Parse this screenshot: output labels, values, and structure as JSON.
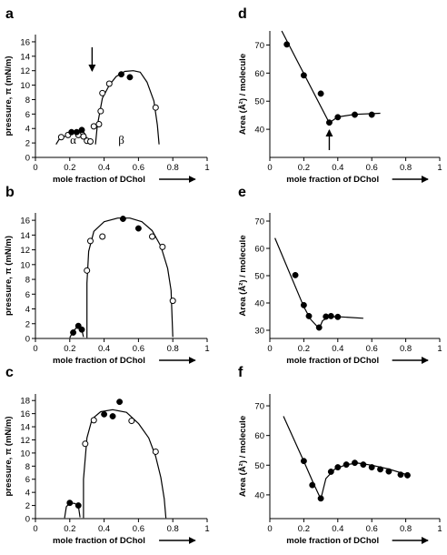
{
  "chart_data": [
    {
      "id": "a",
      "type": "scatter",
      "letter": "a",
      "xlabel": "mole fraction of DChol",
      "ylabel": "pressure, π (mN/m)",
      "xlim": [
        0,
        1
      ],
      "ylim": [
        0,
        17
      ],
      "xticks": [
        0,
        0.2,
        0.4,
        0.6,
        0.8,
        1
      ],
      "xtick_labels": [
        "0",
        "0.2",
        "0.4",
        "0.6",
        "0.8",
        "1"
      ],
      "yticks": [
        0,
        2,
        4,
        6,
        8,
        10,
        12,
        14,
        16
      ],
      "ytick_labels": [
        "0",
        "2",
        "4",
        "6",
        "8",
        "10",
        "12",
        "14",
        "16"
      ],
      "open_points": [
        [
          0.15,
          2.8
        ],
        [
          0.19,
          3.1
        ],
        [
          0.25,
          3.1
        ],
        [
          0.28,
          2.9
        ],
        [
          0.3,
          2.3
        ],
        [
          0.32,
          2.2
        ],
        [
          0.34,
          4.3
        ],
        [
          0.37,
          4.6
        ],
        [
          0.38,
          6.4
        ],
        [
          0.39,
          8.9
        ],
        [
          0.43,
          10.2
        ],
        [
          0.7,
          6.9
        ]
      ],
      "filled_points": [
        [
          0.21,
          3.5
        ],
        [
          0.24,
          3.5
        ],
        [
          0.27,
          3.8
        ],
        [
          0.5,
          11.5
        ],
        [
          0.55,
          11.1
        ]
      ],
      "curves": [
        [
          [
            0.12,
            1.8
          ],
          [
            0.14,
            2.6
          ],
          [
            0.17,
            2.9
          ],
          [
            0.2,
            3.2
          ],
          [
            0.24,
            3.6
          ],
          [
            0.27,
            3.8
          ],
          [
            0.29,
            3.2
          ],
          [
            0.31,
            1.9
          ]
        ],
        [
          [
            0.35,
            1.8
          ],
          [
            0.36,
            4.3
          ],
          [
            0.37,
            5.6
          ],
          [
            0.39,
            8.2
          ],
          [
            0.43,
            10.0
          ],
          [
            0.47,
            11.2
          ],
          [
            0.52,
            11.9
          ],
          [
            0.57,
            12.0
          ],
          [
            0.61,
            11.8
          ],
          [
            0.65,
            10.4
          ],
          [
            0.69,
            7.8
          ],
          [
            0.71,
            4.5
          ],
          [
            0.72,
            1.8
          ]
        ]
      ],
      "annotations": [
        {
          "text": "α",
          "x": 0.22,
          "y": 2.4
        },
        {
          "text": "β",
          "x": 0.5,
          "y": 2.4
        }
      ],
      "down_arrow_x": 0.33
    },
    {
      "id": "b",
      "type": "scatter",
      "letter": "b",
      "xlabel": "mole fraction of DChol",
      "ylabel": "pressure, π (mN/m)",
      "xlim": [
        0,
        1
      ],
      "ylim": [
        0,
        17
      ],
      "xticks": [
        0,
        0.2,
        0.4,
        0.6,
        0.8,
        1
      ],
      "xtick_labels": [
        "0",
        "0.2",
        "0.4",
        "0.6",
        "0.8",
        "1"
      ],
      "yticks": [
        0,
        2,
        4,
        6,
        8,
        10,
        12,
        14,
        16
      ],
      "ytick_labels": [
        "0",
        "2",
        "4",
        "6",
        "8",
        "10",
        "12",
        "14",
        "16"
      ],
      "open_points": [
        [
          0.3,
          9.2
        ],
        [
          0.32,
          13.2
        ],
        [
          0.39,
          13.8
        ],
        [
          0.68,
          13.8
        ],
        [
          0.74,
          12.4
        ],
        [
          0.8,
          5.1
        ]
      ],
      "filled_points": [
        [
          0.22,
          0.8
        ],
        [
          0.25,
          1.7
        ],
        [
          0.27,
          1.2
        ],
        [
          0.51,
          16.2
        ],
        [
          0.6,
          14.9
        ]
      ],
      "curves": [
        [
          [
            0.2,
            0.1
          ],
          [
            0.22,
            1.0
          ],
          [
            0.25,
            1.7
          ],
          [
            0.27,
            1.2
          ],
          [
            0.28,
            0.2
          ]
        ],
        [
          [
            0.3,
            0.1
          ],
          [
            0.3,
            7.5
          ],
          [
            0.31,
            11.8
          ],
          [
            0.34,
            14.5
          ],
          [
            0.4,
            15.8
          ],
          [
            0.48,
            16.3
          ],
          [
            0.55,
            16.3
          ],
          [
            0.62,
            15.8
          ],
          [
            0.68,
            14.6
          ],
          [
            0.73,
            12.5
          ],
          [
            0.77,
            9.5
          ],
          [
            0.79,
            6.5
          ],
          [
            0.8,
            0.2
          ]
        ]
      ],
      "annotations": [],
      "down_arrow_x": null
    },
    {
      "id": "c",
      "type": "scatter",
      "letter": "c",
      "xlabel": "mole fraction of DChol",
      "ylabel": "pressure, π (mN/m)",
      "xlim": [
        0,
        1
      ],
      "ylim": [
        0,
        19
      ],
      "xticks": [
        0,
        0.2,
        0.4,
        0.6,
        0.8,
        1
      ],
      "xtick_labels": [
        "0",
        "0.2",
        "0.4",
        "0.6",
        "0.8",
        "1"
      ],
      "yticks": [
        0,
        2,
        4,
        6,
        8,
        10,
        12,
        14,
        16,
        18
      ],
      "ytick_labels": [
        "0",
        "2",
        "4",
        "6",
        "8",
        "10",
        "12",
        "14",
        "16",
        "18"
      ],
      "open_points": [
        [
          0.29,
          11.4
        ],
        [
          0.34,
          15.0
        ],
        [
          0.56,
          14.9
        ],
        [
          0.7,
          10.2
        ]
      ],
      "filled_points": [
        [
          0.2,
          2.4
        ],
        [
          0.25,
          2.0
        ],
        [
          0.4,
          15.9
        ],
        [
          0.45,
          15.6
        ],
        [
          0.49,
          17.8
        ]
      ],
      "curves": [
        [
          [
            0.17,
            0.1
          ],
          [
            0.18,
            1.8
          ],
          [
            0.2,
            2.4
          ],
          [
            0.23,
            2.3
          ],
          [
            0.25,
            1.9
          ],
          [
            0.26,
            0.2
          ]
        ],
        [
          [
            0.28,
            0.1
          ],
          [
            0.28,
            6.0
          ],
          [
            0.3,
            12.3
          ],
          [
            0.33,
            15.2
          ],
          [
            0.38,
            16.3
          ],
          [
            0.45,
            16.6
          ],
          [
            0.53,
            16.2
          ],
          [
            0.6,
            14.5
          ],
          [
            0.66,
            12.3
          ],
          [
            0.7,
            9.5
          ],
          [
            0.73,
            6.3
          ],
          [
            0.75,
            3.0
          ],
          [
            0.76,
            0.1
          ]
        ]
      ],
      "annotations": [],
      "down_arrow_x": null
    },
    {
      "id": "d",
      "type": "scatter",
      "letter": "d",
      "xlabel": "mole fraction of DChol",
      "ylabel": "Area (Å²) / molecule",
      "xlim": [
        0,
        1
      ],
      "ylim": [
        30,
        75
      ],
      "xticks": [
        0,
        0.2,
        0.4,
        0.6,
        0.8,
        1
      ],
      "xtick_labels": [
        "0",
        "0.2",
        "0.4",
        "0.6",
        "0.8",
        "1"
      ],
      "yticks": [
        40,
        50,
        60,
        70
      ],
      "ytick_labels": [
        "40",
        "50",
        "60",
        "70"
      ],
      "open_points": [],
      "filled_points": [
        [
          0.1,
          70.2
        ],
        [
          0.2,
          59.2
        ],
        [
          0.3,
          52.7
        ],
        [
          0.35,
          42.4
        ],
        [
          0.4,
          44.3
        ],
        [
          0.5,
          45.2
        ],
        [
          0.6,
          45.2
        ]
      ],
      "curves": [
        [
          [
            0.07,
            75.0
          ],
          [
            0.35,
            42.3
          ]
        ],
        [
          [
            0.35,
            42.3
          ],
          [
            0.4,
            44.4
          ],
          [
            0.5,
            45.3
          ],
          [
            0.65,
            45.7
          ]
        ]
      ],
      "annotations": [],
      "up_arrow_x": 0.35
    },
    {
      "id": "e",
      "type": "scatter",
      "letter": "e",
      "xlabel": "mole fraction of DChol",
      "ylabel": "Area (Å²) / molecule",
      "xlim": [
        0,
        1
      ],
      "ylim": [
        27,
        73
      ],
      "xticks": [
        0,
        0.2,
        0.4,
        0.6,
        0.8,
        1
      ],
      "xtick_labels": [
        "0",
        "0.2",
        "0.4",
        "0.6",
        "0.8",
        "1"
      ],
      "yticks": [
        30,
        40,
        50,
        60,
        70
      ],
      "ytick_labels": [
        "30",
        "40",
        "50",
        "60",
        "70"
      ],
      "open_points": [],
      "filled_points": [
        [
          0.15,
          50.2
        ],
        [
          0.2,
          39.2
        ],
        [
          0.23,
          35.2
        ],
        [
          0.29,
          31.0
        ],
        [
          0.33,
          35.0
        ],
        [
          0.36,
          35.2
        ],
        [
          0.4,
          34.9
        ]
      ],
      "curves": [
        [
          [
            0.03,
            63.8
          ],
          [
            0.2,
            38.6
          ],
          [
            0.24,
            34.0
          ],
          [
            0.27,
            32.0
          ],
          [
            0.29,
            30.5
          ]
        ],
        [
          [
            0.29,
            30.5
          ],
          [
            0.31,
            33.5
          ],
          [
            0.35,
            35.0
          ],
          [
            0.42,
            34.9
          ],
          [
            0.55,
            34.4
          ]
        ]
      ],
      "annotations": [],
      "up_arrow_x": null
    },
    {
      "id": "f",
      "type": "scatter",
      "letter": "f",
      "xlabel": "mole fraction of DChol",
      "ylabel": "Area (Å²) / molecule",
      "xlim": [
        0,
        1
      ],
      "ylim": [
        32,
        74
      ],
      "xticks": [
        0,
        0.2,
        0.4,
        0.6,
        0.8,
        1
      ],
      "xtick_labels": [
        "0",
        "0.2",
        "0.4",
        "0.6",
        "0.8",
        "1"
      ],
      "yticks": [
        40,
        50,
        60,
        70
      ],
      "ytick_labels": [
        "40",
        "50",
        "60",
        "70"
      ],
      "open_points": [],
      "filled_points": [
        [
          0.2,
          51.4
        ],
        [
          0.25,
          43.3
        ],
        [
          0.3,
          38.8
        ],
        [
          0.36,
          47.8
        ],
        [
          0.4,
          49.3
        ],
        [
          0.45,
          50.2
        ],
        [
          0.5,
          50.8
        ],
        [
          0.55,
          50.2
        ],
        [
          0.6,
          49.3
        ],
        [
          0.65,
          48.6
        ],
        [
          0.7,
          47.9
        ],
        [
          0.77,
          46.8
        ],
        [
          0.81,
          46.6
        ]
      ],
      "curves": [
        [
          [
            0.08,
            66.5
          ],
          [
            0.2,
            51.3
          ],
          [
            0.26,
            43.5
          ],
          [
            0.3,
            38.6
          ]
        ],
        [
          [
            0.3,
            38.6
          ],
          [
            0.33,
            45.5
          ],
          [
            0.38,
            48.6
          ],
          [
            0.45,
            50.2
          ],
          [
            0.52,
            50.7
          ],
          [
            0.6,
            50.0
          ],
          [
            0.7,
            48.7
          ],
          [
            0.82,
            46.6
          ]
        ]
      ],
      "annotations": [],
      "up_arrow_x": null
    }
  ]
}
